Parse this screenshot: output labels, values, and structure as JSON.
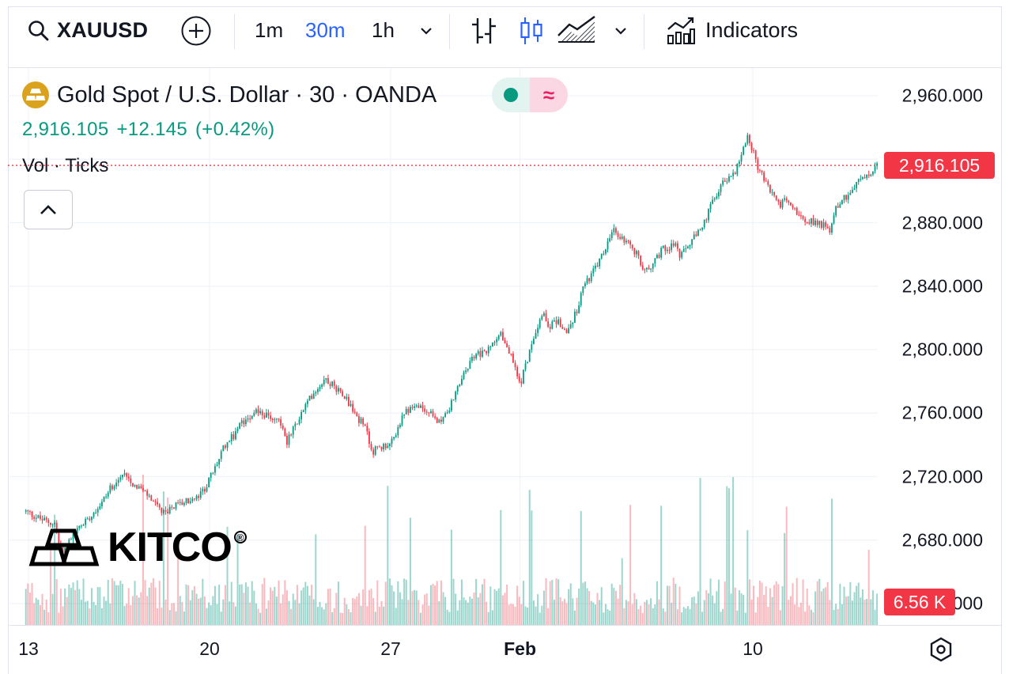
{
  "toolbar": {
    "symbol": "XAUUSD",
    "timeframes": [
      "1m",
      "30m",
      "1h"
    ],
    "active_timeframe": "30m",
    "indicators_label": "Indicators"
  },
  "legend": {
    "title": "Gold Spot / U.S. Dollar · 30 · OANDA",
    "last_price": "2,916.105",
    "change": "+12.145",
    "change_pct": "(+0.42%)",
    "volume_label": "Vol · Ticks"
  },
  "badges": {
    "price": "2,916.105",
    "volume": "6.56 K"
  },
  "logo_text": "KITCO",
  "colors": {
    "up": "#089981",
    "down": "#f23645",
    "accent": "#2962ff",
    "gold": "#dba21d"
  },
  "chart_data": {
    "type": "candlestick",
    "symbol": "XAUUSD",
    "title": "Gold Spot / U.S. Dollar · 30 · OANDA",
    "ylim": [
      2660,
      2970
    ],
    "y_ticks": [
      "2,960.000",
      "2,880.000",
      "2,840.000",
      "2,800.000",
      "2,760.000",
      "2,720.000",
      "2,680.000",
      "2,640.000"
    ],
    "y_tick_values": [
      2960,
      2880,
      2840,
      2800,
      2760,
      2720,
      2680,
      2640
    ],
    "x_ticks": [
      "13",
      "20",
      "27",
      "Feb",
      "10"
    ],
    "x_tick_days": [
      13,
      20,
      27,
      32,
      41
    ],
    "x_range_days": [
      12.9,
      46.3
    ],
    "last_price": 2916.105,
    "volume_last": "6.56 K",
    "grid": true,
    "path_days": [
      12.9,
      13.5,
      14.0,
      14.3,
      14.8,
      15.3,
      15.8,
      16.3,
      16.8,
      17.0,
      17.3,
      17.8,
      18.2,
      18.7,
      19.2,
      19.5,
      19.8,
      20.2,
      20.6,
      21.0,
      21.2,
      21.5,
      21.8,
      22.2,
      22.7,
      23.0,
      23.5,
      24.0,
      24.5,
      24.8,
      25.2,
      25.6,
      26.0,
      26.3,
      26.8,
      27.1,
      27.2,
      27.5,
      27.8,
      28.2,
      28.5,
      28.8,
      29.2,
      29.5,
      30.0,
      30.3,
      30.5,
      30.8,
      31.2,
      31.7,
      32.0,
      32.3,
      32.5,
      32.9,
      33.1,
      33.5,
      33.8,
      34.2,
      34.5,
      34.8,
      35.2,
      35.6,
      35.8,
      36.2,
      36.6,
      36.8,
      37.1,
      37.5,
      38.0,
      38.2,
      38.6,
      39.0,
      39.5,
      39.8,
      40.3,
      40.8,
      41.2,
      41.6,
      41.9,
      42.0,
      42.3,
      42.5,
      42.9,
      43.2,
      43.6,
      44.0,
      44.2,
      44.5,
      44.8,
      45.2,
      45.6,
      45.9,
      46.2
    ],
    "path_prices": [
      2698,
      2693,
      2690,
      2672,
      2685,
      2694,
      2703,
      2716,
      2722,
      2716,
      2713,
      2705,
      2696,
      2702,
      2705,
      2706,
      2712,
      2725,
      2740,
      2747,
      2753,
      2758,
      2762,
      2758,
      2756,
      2742,
      2758,
      2773,
      2782,
      2777,
      2772,
      2760,
      2751,
      2736,
      2740,
      2742,
      2748,
      2758,
      2765,
      2763,
      2760,
      2755,
      2760,
      2772,
      2790,
      2798,
      2797,
      2800,
      2812,
      2794,
      2778,
      2795,
      2808,
      2825,
      2815,
      2818,
      2810,
      2825,
      2842,
      2848,
      2860,
      2875,
      2872,
      2866,
      2858,
      2848,
      2854,
      2863,
      2867,
      2858,
      2868,
      2875,
      2895,
      2905,
      2912,
      2935,
      2915,
      2902,
      2895,
      2891,
      2895,
      2890,
      2884,
      2881,
      2880,
      2875,
      2890,
      2895,
      2900,
      2908,
      2910,
      2920,
      2916
    ]
  }
}
